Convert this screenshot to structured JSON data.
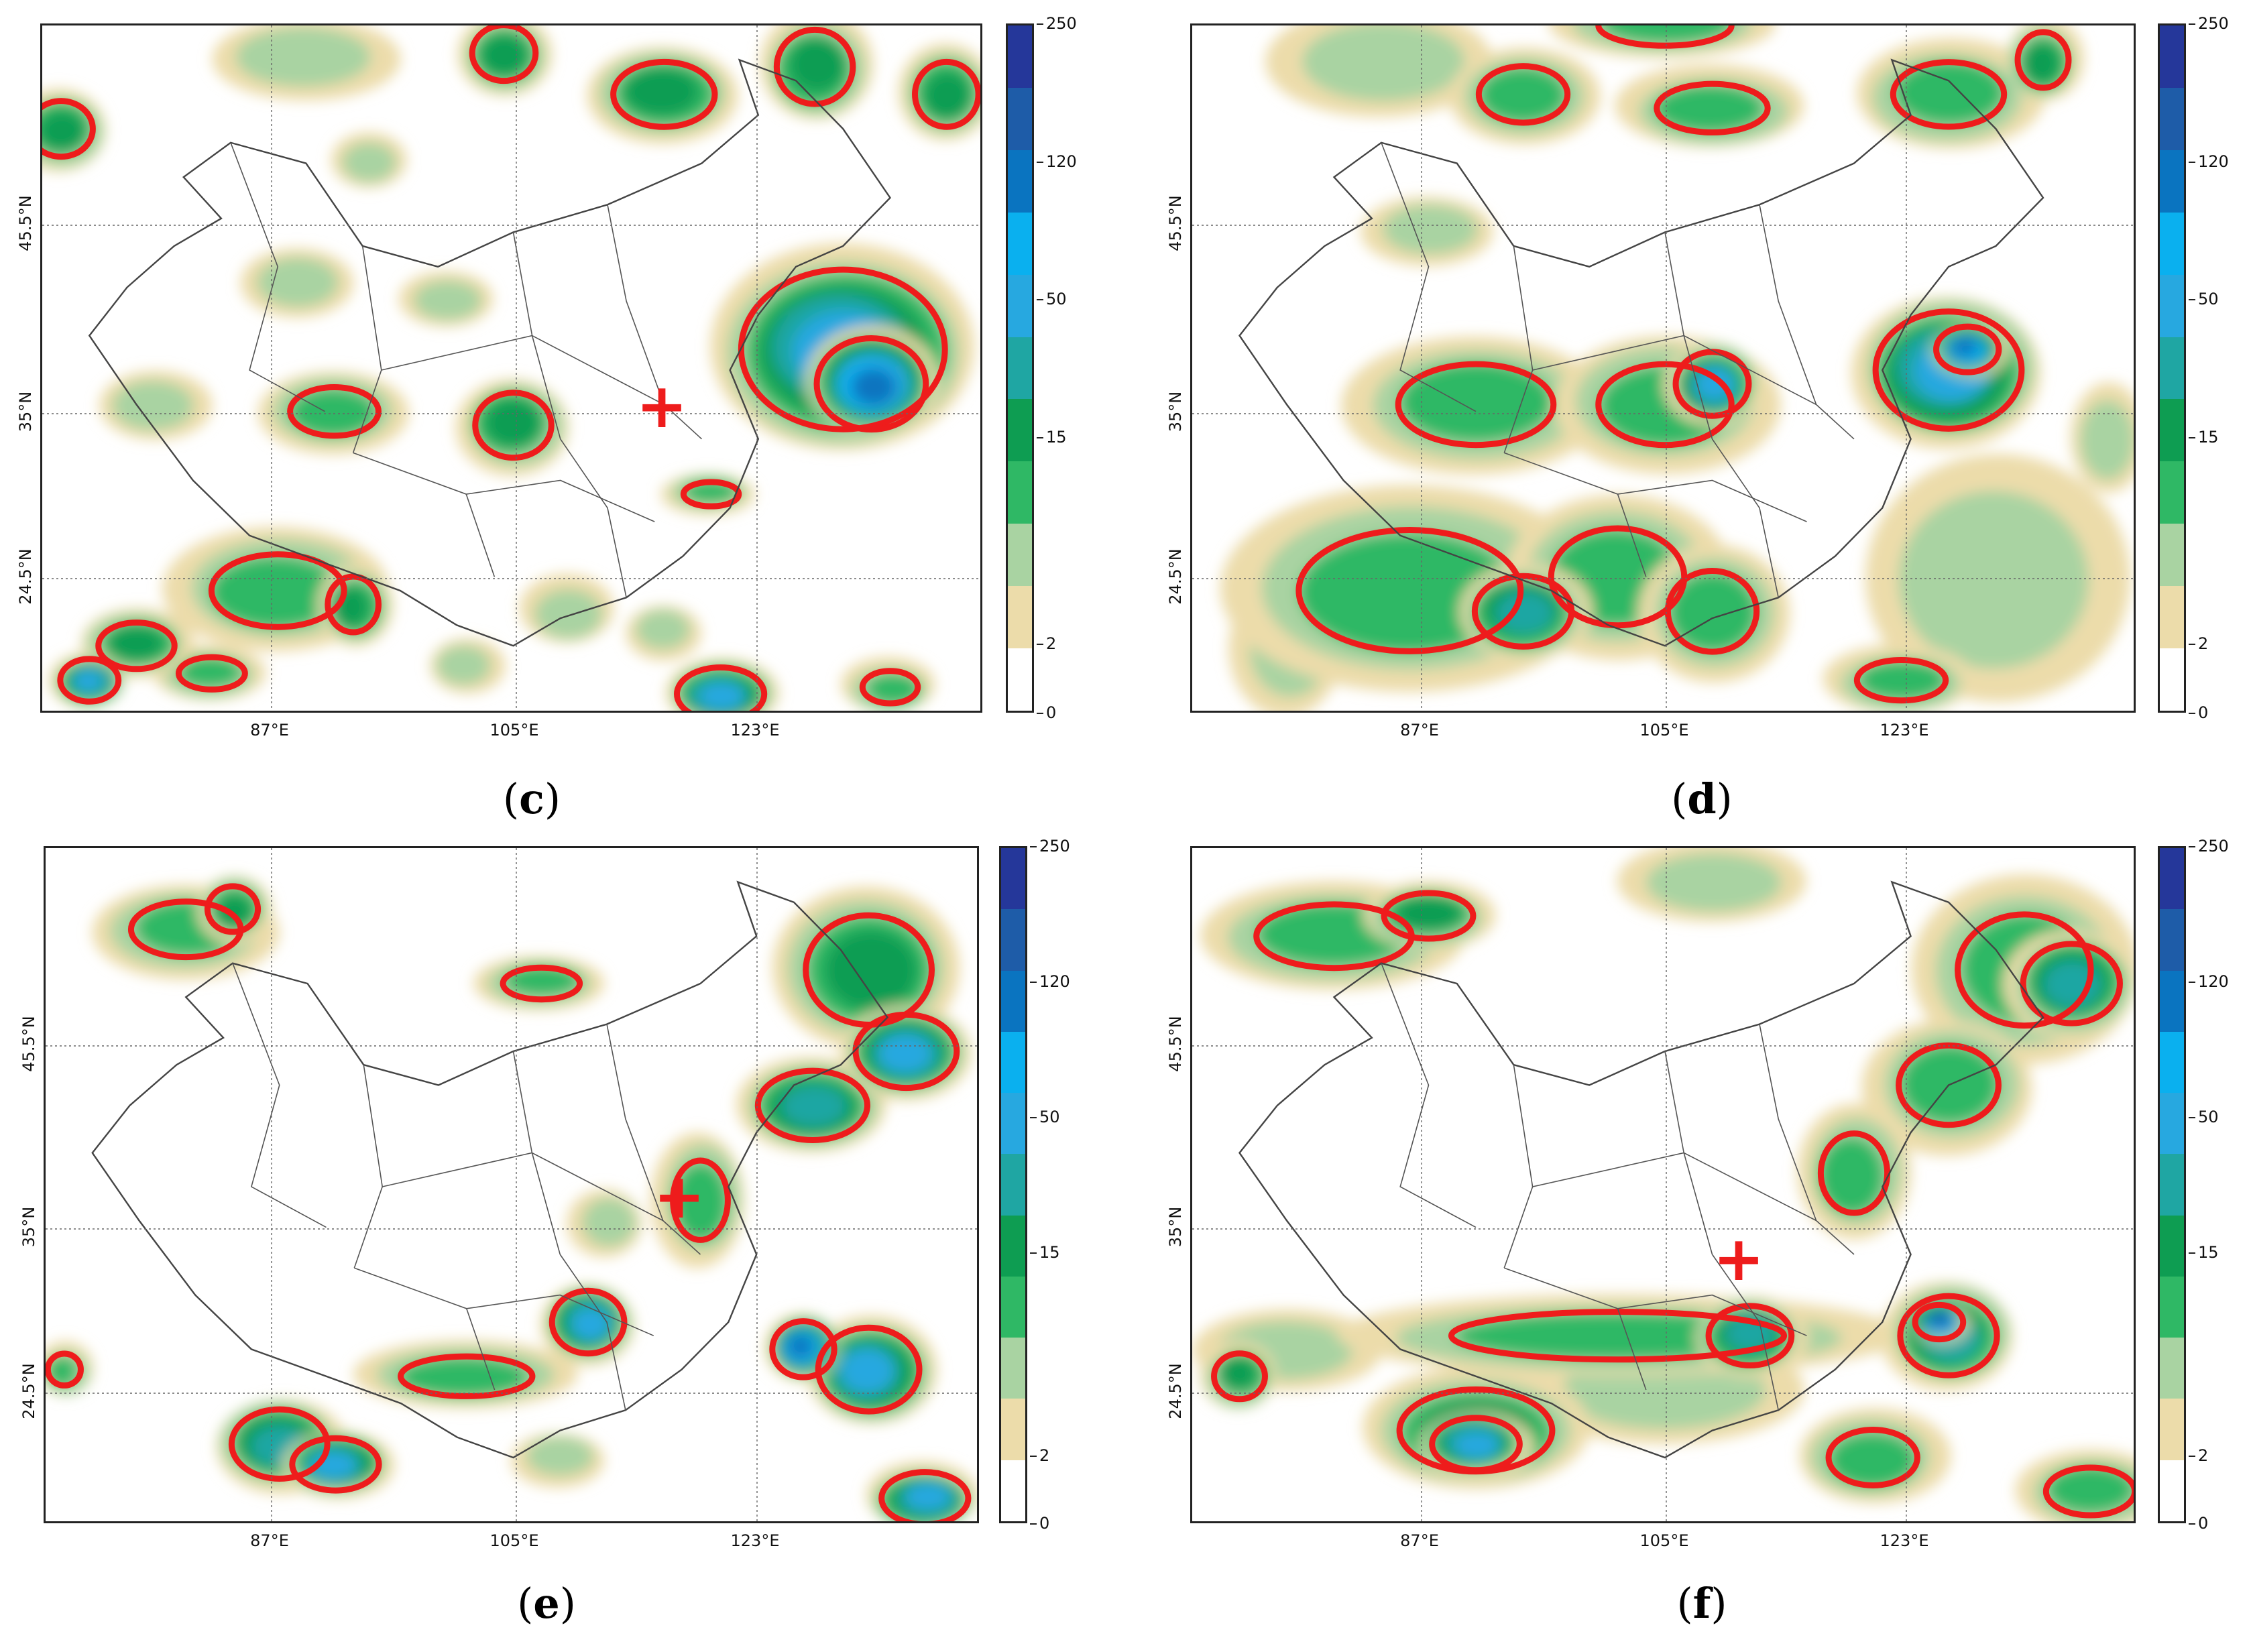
{
  "colorbar": {
    "ticks": [
      "0",
      "2",
      "15",
      "50",
      "120",
      "250"
    ],
    "colors": [
      "#ffffff",
      "#ecdcaa",
      "#a9d3a2",
      "#2fb865",
      "#0e9d52",
      "#1fa6a3",
      "#27a8e0",
      "#0ab0ef",
      "#0a74c0",
      "#1e5ca8",
      "#25379a"
    ]
  },
  "axes": {
    "x_ticks": [
      "87°E",
      "105°E",
      "123°E"
    ],
    "y_ticks": [
      "45.5°N",
      "35°N",
      "24.5°N"
    ]
  },
  "marker_symbol": "+",
  "contour_color": "#ee1c1c",
  "panels": [
    {
      "label_open": "(",
      "label_letter": "c",
      "label_close": ")",
      "marker_icon": "red-cross-icon"
    },
    {
      "label_open": "(",
      "label_letter": "d",
      "label_close": ")",
      "marker_icon": "none"
    },
    {
      "label_open": "(",
      "label_letter": "e",
      "label_close": ")",
      "marker_icon": "red-cross-icon"
    },
    {
      "label_open": "(",
      "label_letter": "f",
      "label_close": ")",
      "marker_icon": "red-cross-icon"
    }
  ]
}
